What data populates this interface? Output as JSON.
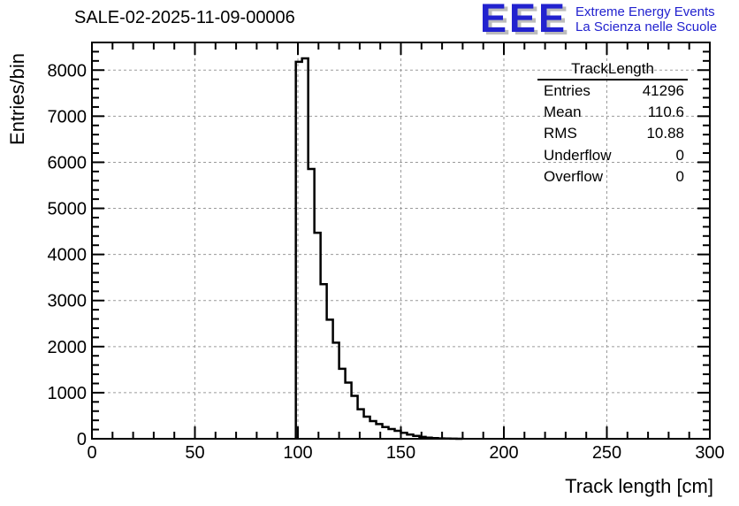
{
  "page": {
    "title": "SALE-02-2025-11-09-00006"
  },
  "logo": {
    "acronym": "EEE",
    "line1": "Extreme Energy Events",
    "line2": "La Scienza nelle Scuole",
    "blue": "#2222cf",
    "shadow": "#bcbcbc"
  },
  "stats": {
    "title": "TrackLength",
    "rows": [
      {
        "label": "Entries",
        "value": "41296"
      },
      {
        "label": "Mean",
        "value": "110.6"
      },
      {
        "label": "RMS",
        "value": "10.88"
      },
      {
        "label": "Underflow",
        "value": "0"
      },
      {
        "label": "Overflow",
        "value": "0"
      }
    ]
  },
  "chart_data": {
    "type": "bar",
    "style": "step-outline-histogram",
    "title": "SALE-02-2025-11-09-00006",
    "xlabel": "Track length [cm]",
    "ylabel": "Entries/bin",
    "xlim": [
      0,
      300
    ],
    "ylim": [
      0,
      8600
    ],
    "x_major_tick": 50,
    "x_minor_tick": 10,
    "y_major_tick": 1000,
    "y_minor_tick": 200,
    "grid": "dashed-on-major",
    "grid_color": "#9a9a9a",
    "line_color": "#000000",
    "first_bin_edge": 99,
    "bin_width": 3,
    "values": [
      8180,
      8255,
      5855,
      4470,
      3355,
      2585,
      2085,
      1520,
      1220,
      930,
      640,
      480,
      385,
      320,
      255,
      210,
      172,
      130,
      92,
      62,
      40,
      25,
      15,
      8,
      4,
      2,
      1
    ],
    "entries_total": 41296,
    "mean": 110.6,
    "rms": 10.88,
    "underflow": 0,
    "overflow": 0
  }
}
